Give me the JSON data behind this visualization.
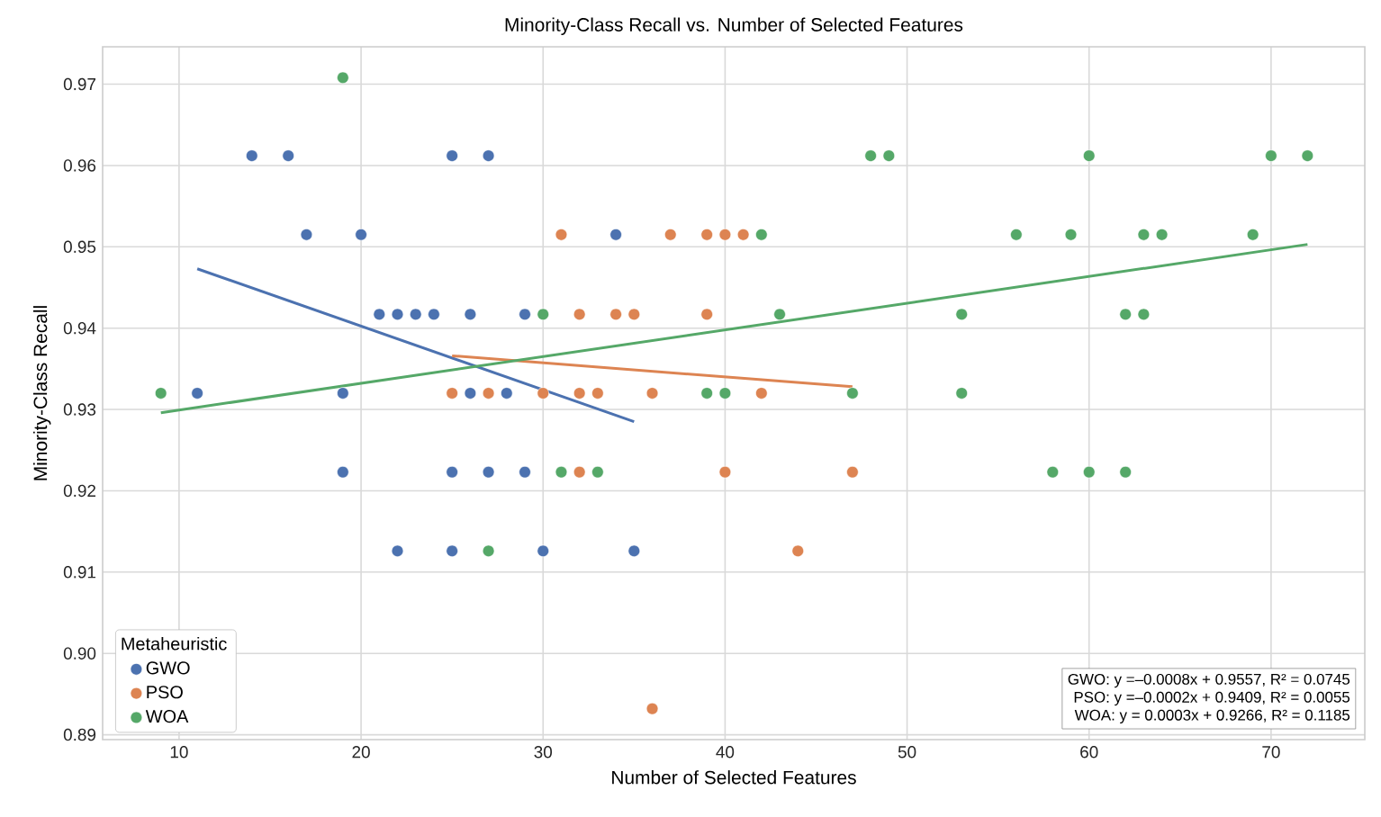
{
  "chart_data": {
    "type": "scatter",
    "title": "Minority-Class Recall vs. Number of Selected Features",
    "xlabel": "Number of Selected Features",
    "ylabel": "Minority-Class Recall",
    "legend_title": "Metaheuristic",
    "series": [
      {
        "name": "GWO",
        "color": "#4c72b0",
        "marker": "circle",
        "x": [
          14,
          16,
          25,
          27,
          17,
          20,
          34,
          21,
          22,
          23,
          24,
          26,
          29,
          11,
          19,
          26,
          28,
          19,
          25,
          27,
          29,
          22,
          25,
          30,
          35
        ],
        "values": [
          0.9612,
          0.9612,
          0.9612,
          0.9612,
          0.9515,
          0.9515,
          0.9515,
          0.9417,
          0.9417,
          0.9417,
          0.9417,
          0.9417,
          0.9417,
          0.932,
          0.932,
          0.932,
          0.932,
          0.9223,
          0.9223,
          0.9223,
          0.9223,
          0.9126,
          0.9126,
          0.9126,
          0.9126
        ]
      },
      {
        "name": "PSO",
        "color": "#dd8452",
        "marker": "circle",
        "x": [
          31,
          37,
          39,
          40,
          41,
          32,
          34,
          35,
          39,
          25,
          27,
          30,
          32,
          33,
          36,
          42,
          32,
          40,
          47,
          44,
          36
        ],
        "values": [
          0.9515,
          0.9515,
          0.9515,
          0.9515,
          0.9515,
          0.9417,
          0.9417,
          0.9417,
          0.9417,
          0.932,
          0.932,
          0.932,
          0.932,
          0.932,
          0.932,
          0.932,
          0.9223,
          0.9223,
          0.9223,
          0.9126,
          0.8932
        ]
      },
      {
        "name": "WOA",
        "color": "#55a868",
        "marker": "circle",
        "x": [
          19,
          48,
          49,
          60,
          70,
          72,
          42,
          56,
          59,
          63,
          64,
          69,
          30,
          43,
          53,
          62,
          63,
          9,
          39,
          40,
          47,
          53,
          31,
          33,
          58,
          60,
          62,
          27
        ],
        "values": [
          0.9708,
          0.9612,
          0.9612,
          0.9612,
          0.9612,
          0.9612,
          0.9515,
          0.9515,
          0.9515,
          0.9515,
          0.9515,
          0.9515,
          0.9417,
          0.9417,
          0.9417,
          0.9417,
          0.9417,
          0.932,
          0.932,
          0.932,
          0.932,
          0.932,
          0.9223,
          0.9223,
          0.9223,
          0.9223,
          0.9223,
          0.9126
        ]
      },
      {
        "type": "line",
        "marker": "none",
        "color": "#4c72b0",
        "x": [
          11,
          35
        ],
        "values": [
          0.9473,
          0.9285
        ]
      },
      {
        "type": "line",
        "marker": "none",
        "color": "#dd8452",
        "x": [
          25,
          47
        ],
        "values": [
          0.9366,
          0.9328
        ]
      },
      {
        "type": "line",
        "marker": "none",
        "color": "#55a868",
        "x": [
          9,
          72
        ],
        "values": [
          0.9296,
          0.9503
        ]
      }
    ],
    "xlim": [
      5.8,
      75.15
    ],
    "ylim": [
      0.8894,
      0.9746
    ],
    "xticks": [
      10,
      20,
      30,
      40,
      50,
      60,
      70
    ],
    "yticks": [
      0.89,
      {
        "value": 0.9,
        "label": "0.90"
      },
      0.91,
      0.92,
      0.93,
      0.94,
      0.95,
      0.96,
      0.97
    ],
    "grid": true,
    "legend": "bottom left",
    "annotations": [
      "GWO: y =–0.0008x + 0.9557, R² = 0.0745",
      "PSO: y =–0.0002x + 0.9409, R² = 0.0055",
      "WOA: y = 0.0003x + 0.9266, R² = 0.1185"
    ]
  }
}
